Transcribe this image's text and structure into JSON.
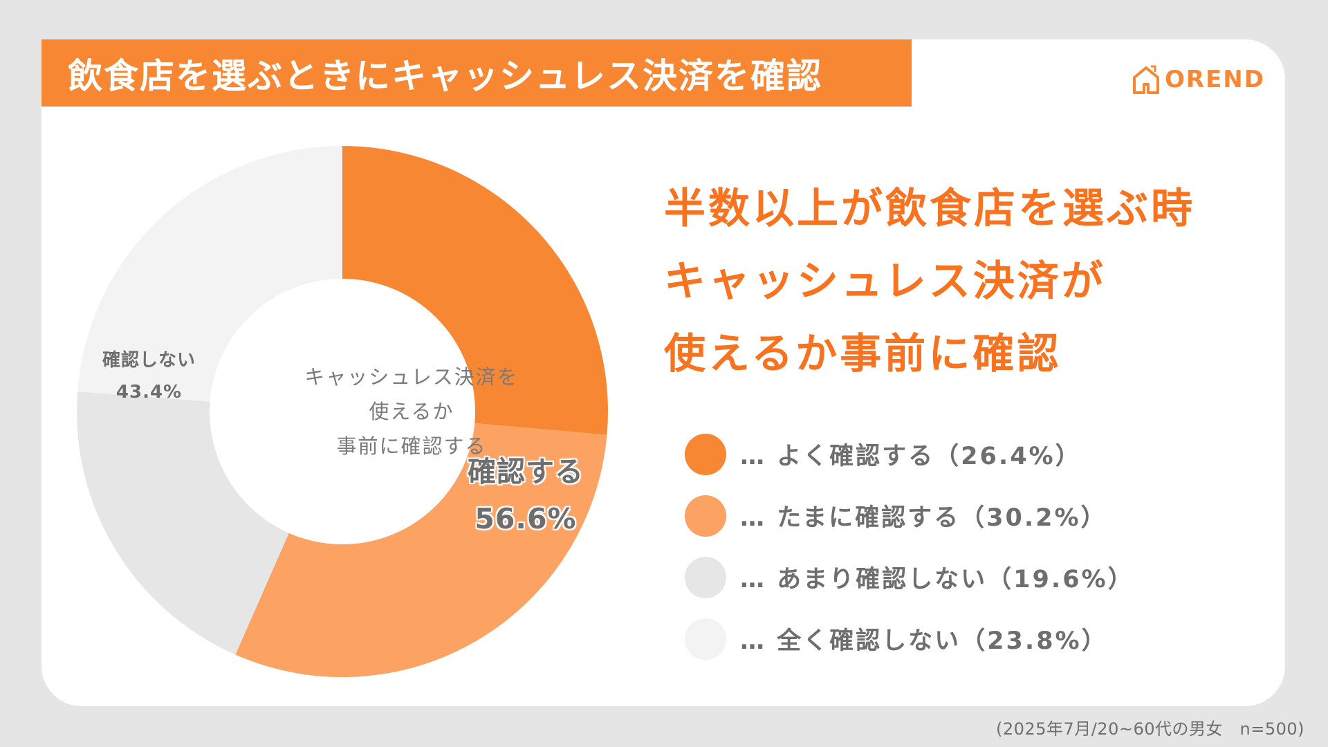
{
  "title": "飲食店を選ぶときにキャッシュレス決済を確認",
  "logo": {
    "text": "OREND",
    "icon": "house-icon"
  },
  "headline": {
    "line1": "半数以上が飲食店を選ぶ時",
    "line2": "キャッシュレス決済が",
    "line3": "使えるか事前に確認"
  },
  "donut_center": {
    "line1": "キャッシュレス決済を",
    "line2": "使えるか",
    "line3": "事前に確認する"
  },
  "group_labels": {
    "confirm": {
      "label": "確認する",
      "value": "56.6%"
    },
    "not_confirm": {
      "label": "確認しない",
      "value": "43.4%"
    }
  },
  "legend": [
    {
      "text": "… よく確認する（26.4%）"
    },
    {
      "text": "… たまに確認する（30.2%）"
    },
    {
      "text": "… あまり確認しない（19.6%）"
    },
    {
      "text": "… 全く確認しない（23.8%）"
    }
  ],
  "footnote": "(2025年7月/20~60代の男女　n=500)",
  "colors": {
    "accent": "#f88733",
    "headline": "#f8731f",
    "slice_often": "#f88733",
    "slice_sometimes": "#fca263",
    "slice_rarely": "#e6e6e6",
    "slice_never": "#f3f3f3"
  },
  "chart_data": {
    "type": "pie",
    "donut": true,
    "categories": [
      "よく確認する",
      "たまに確認する",
      "あまり確認しない",
      "全く確認しない"
    ],
    "values": [
      26.4,
      30.2,
      19.6,
      23.8
    ],
    "colors": [
      "#f88733",
      "#fca263",
      "#e6e6e6",
      "#f3f3f3"
    ],
    "start": "top",
    "direction": "clockwise"
  }
}
